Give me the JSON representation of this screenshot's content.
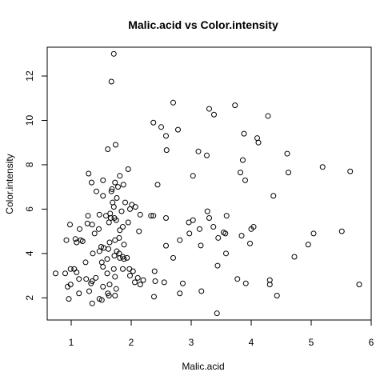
{
  "chart_data": {
    "type": "scatter",
    "title": "Malic.acid vs Color.intensity",
    "xlabel": "Malic.acid",
    "ylabel": "Color.intensity",
    "xlim": [
      0.6,
      6.0
    ],
    "ylim": [
      1.0,
      13.3
    ],
    "xticks": [
      1,
      2,
      3,
      4,
      5,
      6
    ],
    "yticks": [
      2,
      4,
      6,
      8,
      10,
      12
    ],
    "grid": false,
    "points": [
      [
        1.71,
        13.0
      ],
      [
        1.67,
        11.75
      ],
      [
        2.7,
        10.8
      ],
      [
        3.3,
        10.52
      ],
      [
        3.73,
        10.68
      ],
      [
        3.38,
        10.26
      ],
      [
        2.37,
        9.9
      ],
      [
        4.28,
        10.2
      ],
      [
        2.5,
        9.7
      ],
      [
        2.78,
        9.58
      ],
      [
        3.88,
        9.4
      ],
      [
        2.58,
        9.3
      ],
      [
        4.1,
        9.2
      ],
      [
        4.12,
        9.0
      ],
      [
        1.74,
        8.9
      ],
      [
        1.61,
        8.7
      ],
      [
        2.59,
        8.66
      ],
      [
        3.12,
        8.6
      ],
      [
        3.26,
        8.42
      ],
      [
        4.6,
        8.5
      ],
      [
        3.86,
        8.21
      ],
      [
        5.19,
        7.9
      ],
      [
        3.82,
        7.65
      ],
      [
        5.65,
        7.7
      ],
      [
        1.29,
        7.6
      ],
      [
        3.03,
        7.5
      ],
      [
        1.53,
        7.3
      ],
      [
        4.62,
        7.65
      ],
      [
        3.9,
        7.3
      ],
      [
        1.81,
        7.5
      ],
      [
        1.95,
        7.8
      ],
      [
        1.73,
        7.2
      ],
      [
        1.87,
        7.1
      ],
      [
        2.44,
        7.1
      ],
      [
        1.34,
        7.2
      ],
      [
        4.37,
        6.6
      ],
      [
        1.68,
        6.9
      ],
      [
        1.78,
        7.0
      ],
      [
        1.67,
        6.8
      ],
      [
        1.53,
        6.6
      ],
      [
        1.42,
        6.8
      ],
      [
        1.76,
        6.5
      ],
      [
        1.9,
        6.3
      ],
      [
        1.69,
        6.3
      ],
      [
        1.71,
        6.1
      ],
      [
        2.01,
        6.2
      ],
      [
        1.98,
        6.0
      ],
      [
        1.65,
        5.8
      ],
      [
        1.84,
        5.9
      ],
      [
        2.15,
        5.75
      ],
      [
        1.66,
        5.6
      ],
      [
        1.72,
        5.6
      ],
      [
        1.58,
        5.7
      ],
      [
        1.47,
        5.75
      ],
      [
        1.28,
        5.7
      ],
      [
        1.63,
        5.4
      ],
      [
        1.75,
        5.5
      ],
      [
        1.35,
        5.3
      ],
      [
        0.98,
        5.3
      ],
      [
        1.14,
        5.1
      ],
      [
        1.27,
        5.35
      ],
      [
        1.46,
        5.1
      ],
      [
        1.81,
        5.05
      ],
      [
        1.86,
        5.2
      ],
      [
        1.95,
        5.4
      ],
      [
        2.07,
        6.1
      ],
      [
        2.33,
        5.7
      ],
      [
        2.37,
        5.7
      ],
      [
        2.58,
        5.6
      ],
      [
        3.27,
        5.9
      ],
      [
        3.3,
        5.6
      ],
      [
        3.59,
        5.7
      ],
      [
        3.37,
        5.2
      ],
      [
        2.96,
        5.4
      ],
      [
        3.03,
        5.5
      ],
      [
        3.14,
        5.1
      ],
      [
        2.97,
        4.9
      ],
      [
        3.54,
        4.95
      ],
      [
        3.57,
        4.9
      ],
      [
        4.0,
        5.1
      ],
      [
        4.04,
        5.2
      ],
      [
        3.84,
        4.8
      ],
      [
        3.98,
        4.45
      ],
      [
        3.45,
        4.7
      ],
      [
        3.16,
        4.36
      ],
      [
        2.81,
        4.6
      ],
      [
        2.58,
        4.35
      ],
      [
        3.58,
        4.0
      ],
      [
        2.13,
        5.0
      ],
      [
        1.8,
        4.7
      ],
      [
        1.73,
        4.6
      ],
      [
        1.64,
        4.5
      ],
      [
        1.5,
        4.3
      ],
      [
        1.19,
        4.55
      ],
      [
        1.09,
        4.5
      ],
      [
        1.16,
        4.6
      ],
      [
        1.07,
        4.65
      ],
      [
        0.92,
        4.6
      ],
      [
        1.36,
        4.0
      ],
      [
        1.47,
        4.1
      ],
      [
        1.62,
        4.2
      ],
      [
        1.76,
        4.1
      ],
      [
        1.8,
        4.0
      ],
      [
        1.81,
        3.8
      ],
      [
        1.86,
        3.85
      ],
      [
        1.88,
        3.75
      ],
      [
        1.93,
        3.8
      ],
      [
        1.72,
        3.9
      ],
      [
        1.6,
        3.75
      ],
      [
        1.51,
        3.6
      ],
      [
        1.53,
        3.4
      ],
      [
        1.6,
        3.1
      ],
      [
        1.86,
        3.3
      ],
      [
        1.97,
        3.3
      ],
      [
        2.03,
        3.2
      ],
      [
        2.11,
        2.9
      ],
      [
        2.06,
        2.7
      ],
      [
        2.15,
        2.6
      ],
      [
        2.2,
        2.8
      ],
      [
        1.98,
        3.0
      ],
      [
        1.73,
        2.95
      ],
      [
        1.41,
        2.9
      ],
      [
        1.35,
        2.75
      ],
      [
        1.33,
        2.65
      ],
      [
        1.25,
        2.85
      ],
      [
        1.13,
        2.85
      ],
      [
        1.05,
        3.3
      ],
      [
        0.99,
        3.3
      ],
      [
        1.09,
        3.15
      ],
      [
        0.9,
        3.1
      ],
      [
        0.74,
        3.1
      ],
      [
        0.99,
        2.6
      ],
      [
        0.94,
        2.5
      ],
      [
        0.96,
        1.95
      ],
      [
        1.13,
        2.2
      ],
      [
        1.3,
        2.3
      ],
      [
        1.35,
        1.75
      ],
      [
        1.47,
        1.95
      ],
      [
        1.51,
        1.9
      ],
      [
        1.63,
        2.1
      ],
      [
        1.73,
        2.1
      ],
      [
        1.61,
        2.2
      ],
      [
        1.53,
        2.5
      ],
      [
        1.64,
        2.6
      ],
      [
        1.75,
        2.4
      ],
      [
        2.38,
        2.05
      ],
      [
        2.4,
        2.75
      ],
      [
        2.55,
        2.7
      ],
      [
        2.86,
        2.65
      ],
      [
        2.81,
        2.2
      ],
      [
        3.17,
        2.3
      ],
      [
        3.44,
        3.45
      ],
      [
        3.43,
        1.3
      ],
      [
        3.77,
        2.85
      ],
      [
        3.91,
        2.65
      ],
      [
        4.31,
        2.6
      ],
      [
        4.31,
        2.8
      ],
      [
        4.43,
        2.1
      ],
      [
        4.72,
        3.85
      ],
      [
        4.95,
        4.4
      ],
      [
        5.04,
        4.9
      ],
      [
        5.51,
        5.0
      ],
      [
        5.8,
        2.6
      ],
      [
        2.39,
        3.2
      ],
      [
        2.7,
        3.8
      ],
      [
        1.88,
        4.4
      ],
      [
        1.39,
        4.9
      ],
      [
        1.54,
        4.25
      ],
      [
        1.24,
        3.6
      ],
      [
        1.71,
        3.3
      ]
    ]
  }
}
